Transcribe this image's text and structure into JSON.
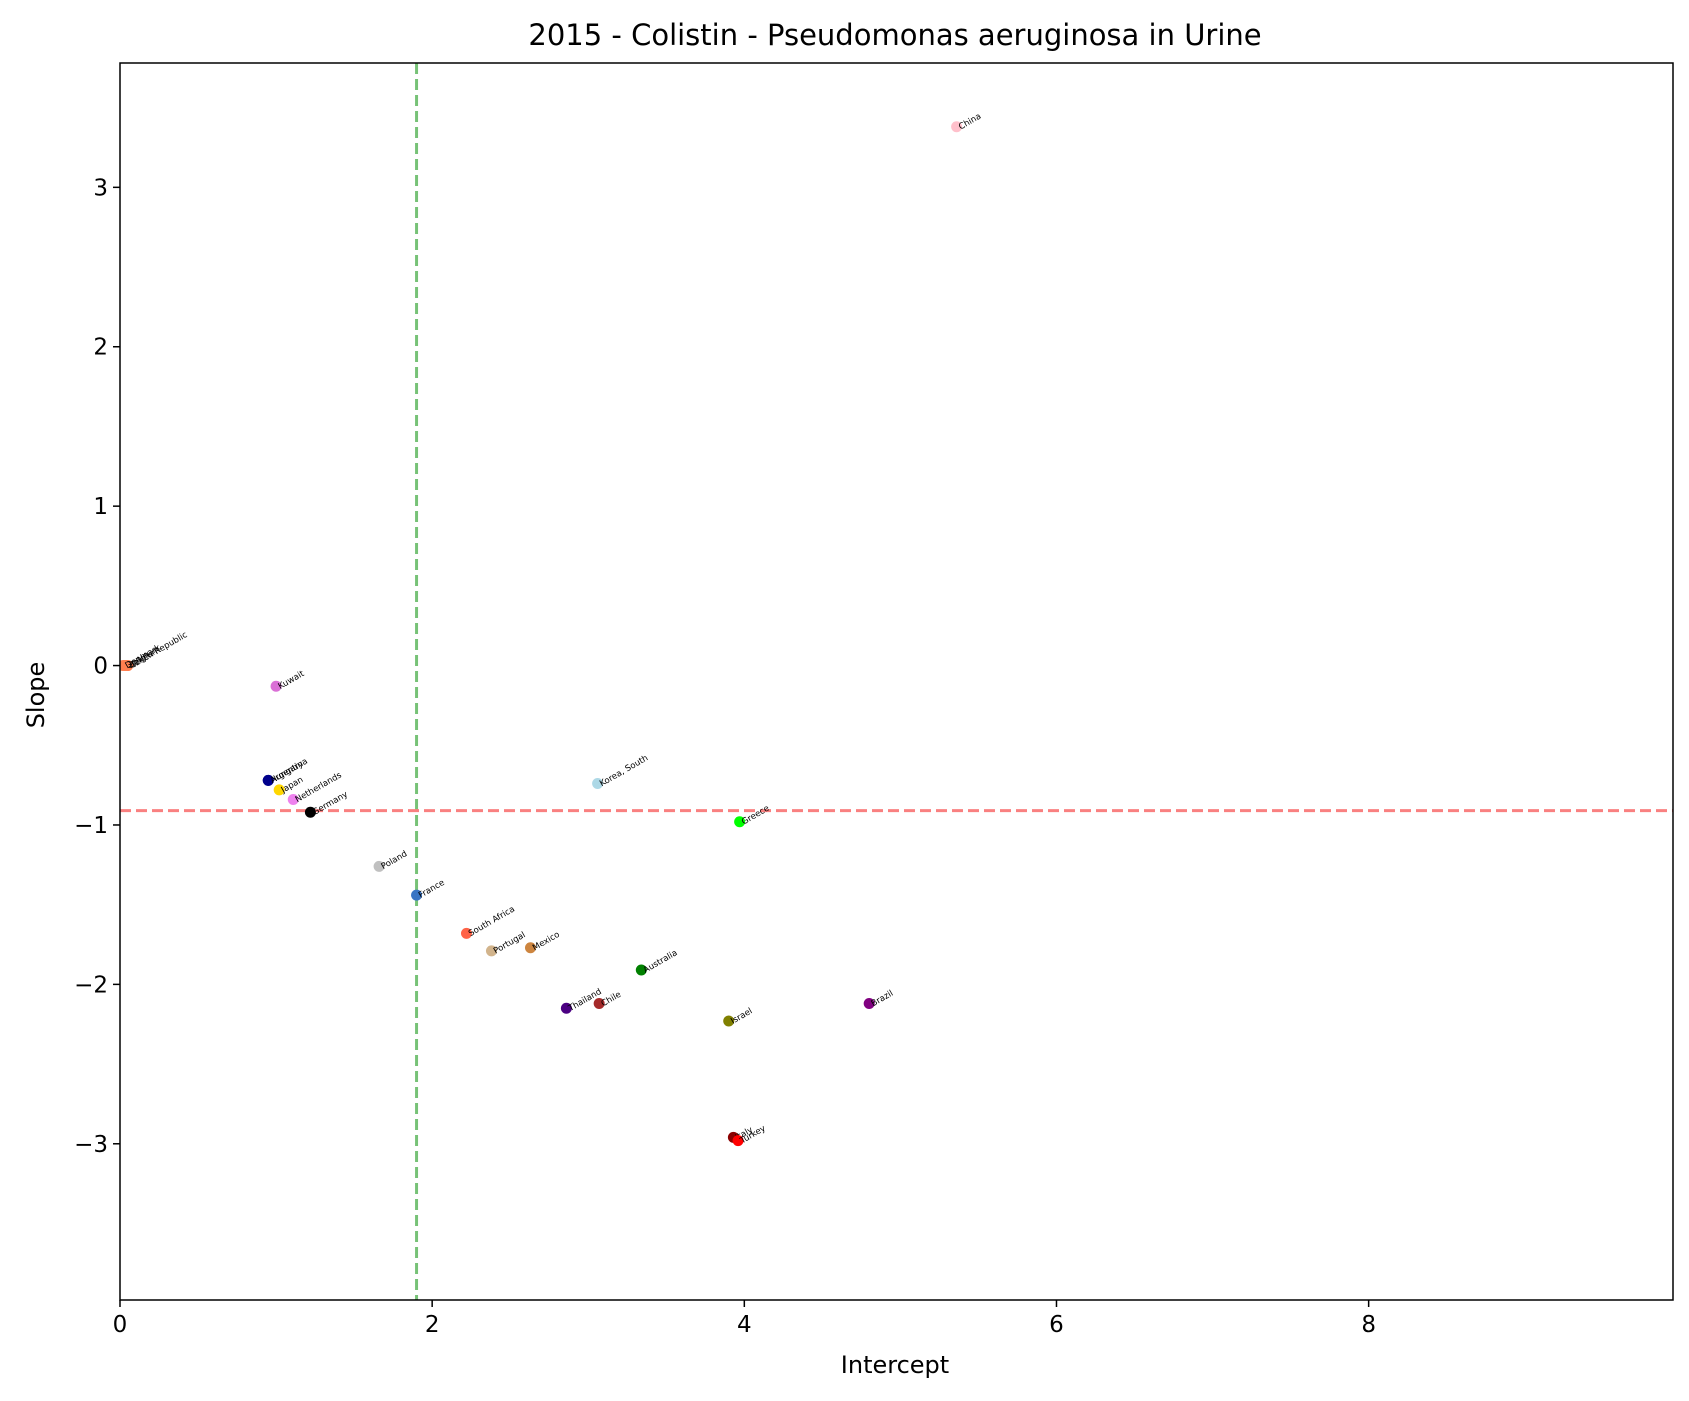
{
  "chart_data": {
    "type": "scatter",
    "title": "2015 - Colistin - Pseudomonas aeruginosa in Urine",
    "xlabel": "Intercept",
    "ylabel": "Slope",
    "xlim": [
      0,
      9.95
    ],
    "ylim": [
      -3.98,
      3.78
    ],
    "xticks": [
      0,
      2,
      4,
      6,
      8
    ],
    "yticks": [
      -3,
      -2,
      -1,
      0,
      1,
      2,
      3
    ],
    "xtick_labels": [
      "0",
      "2",
      "4",
      "6",
      "8"
    ],
    "ytick_labels": [
      "−3",
      "−2",
      "−1",
      "0",
      "1",
      "2",
      "3"
    ],
    "reference_lines": [
      {
        "orientation": "vertical",
        "value": 1.9,
        "color": "#77c277",
        "style": "dashed"
      },
      {
        "orientation": "horizontal",
        "value": -0.91,
        "color": "#f98080",
        "style": "dashed"
      }
    ],
    "points": [
      {
        "label": "China",
        "x": 5.36,
        "y": 3.38,
        "color": "#ffc0cb"
      },
      {
        "label": "Czech Republic",
        "x": 0.05,
        "y": 0.0,
        "color": "#ff7f50"
      },
      {
        "label": "Belgium",
        "x": 0.04,
        "y": 0.0,
        "color": "#ff7f50"
      },
      {
        "label": "Spain",
        "x": 0.03,
        "y": 0.0,
        "color": "#ff7f50"
      },
      {
        "label": "Denmark",
        "x": 0.02,
        "y": 0.0,
        "color": "#ff7f50"
      },
      {
        "label": "Kuwait",
        "x": 1.0,
        "y": -0.13,
        "color": "#da70d6"
      },
      {
        "label": "Hungary",
        "x": 0.95,
        "y": -0.72,
        "color": "#00008b"
      },
      {
        "label": "Argentina",
        "x": 0.95,
        "y": -0.72,
        "color": "#00008b"
      },
      {
        "label": "Japan",
        "x": 1.02,
        "y": -0.78,
        "color": "#ffd700"
      },
      {
        "label": "Netherlands",
        "x": 1.11,
        "y": -0.84,
        "color": "#ee82ee"
      },
      {
        "label": "Germany",
        "x": 1.22,
        "y": -0.92,
        "color": "#000000"
      },
      {
        "label": "Korea, South",
        "x": 3.06,
        "y": -0.74,
        "color": "#add8e6"
      },
      {
        "label": "Greece",
        "x": 3.97,
        "y": -0.98,
        "color": "#00ff00"
      },
      {
        "label": "Poland",
        "x": 1.66,
        "y": -1.26,
        "color": "#c0c0c0"
      },
      {
        "label": "France",
        "x": 1.9,
        "y": -1.44,
        "color": "#3a75c4"
      },
      {
        "label": "South Africa",
        "x": 2.22,
        "y": -1.68,
        "color": "#ff6347"
      },
      {
        "label": "Portugal",
        "x": 2.38,
        "y": -1.79,
        "color": "#d2b48c"
      },
      {
        "label": "Mexico",
        "x": 2.63,
        "y": -1.77,
        "color": "#cd853f"
      },
      {
        "label": "Australia",
        "x": 3.34,
        "y": -1.91,
        "color": "#008000"
      },
      {
        "label": "Thailand",
        "x": 2.86,
        "y": -2.15,
        "color": "#4b0082"
      },
      {
        "label": "Chile",
        "x": 3.07,
        "y": -2.12,
        "color": "#a52a2a"
      },
      {
        "label": "Brazil",
        "x": 4.8,
        "y": -2.12,
        "color": "#800080"
      },
      {
        "label": "Israel",
        "x": 3.9,
        "y": -2.23,
        "color": "#808000"
      },
      {
        "label": "Italy",
        "x": 3.93,
        "y": -2.96,
        "color": "#8b0000"
      },
      {
        "label": "Turkey",
        "x": 3.96,
        "y": -2.98,
        "color": "#ff0000"
      }
    ]
  }
}
